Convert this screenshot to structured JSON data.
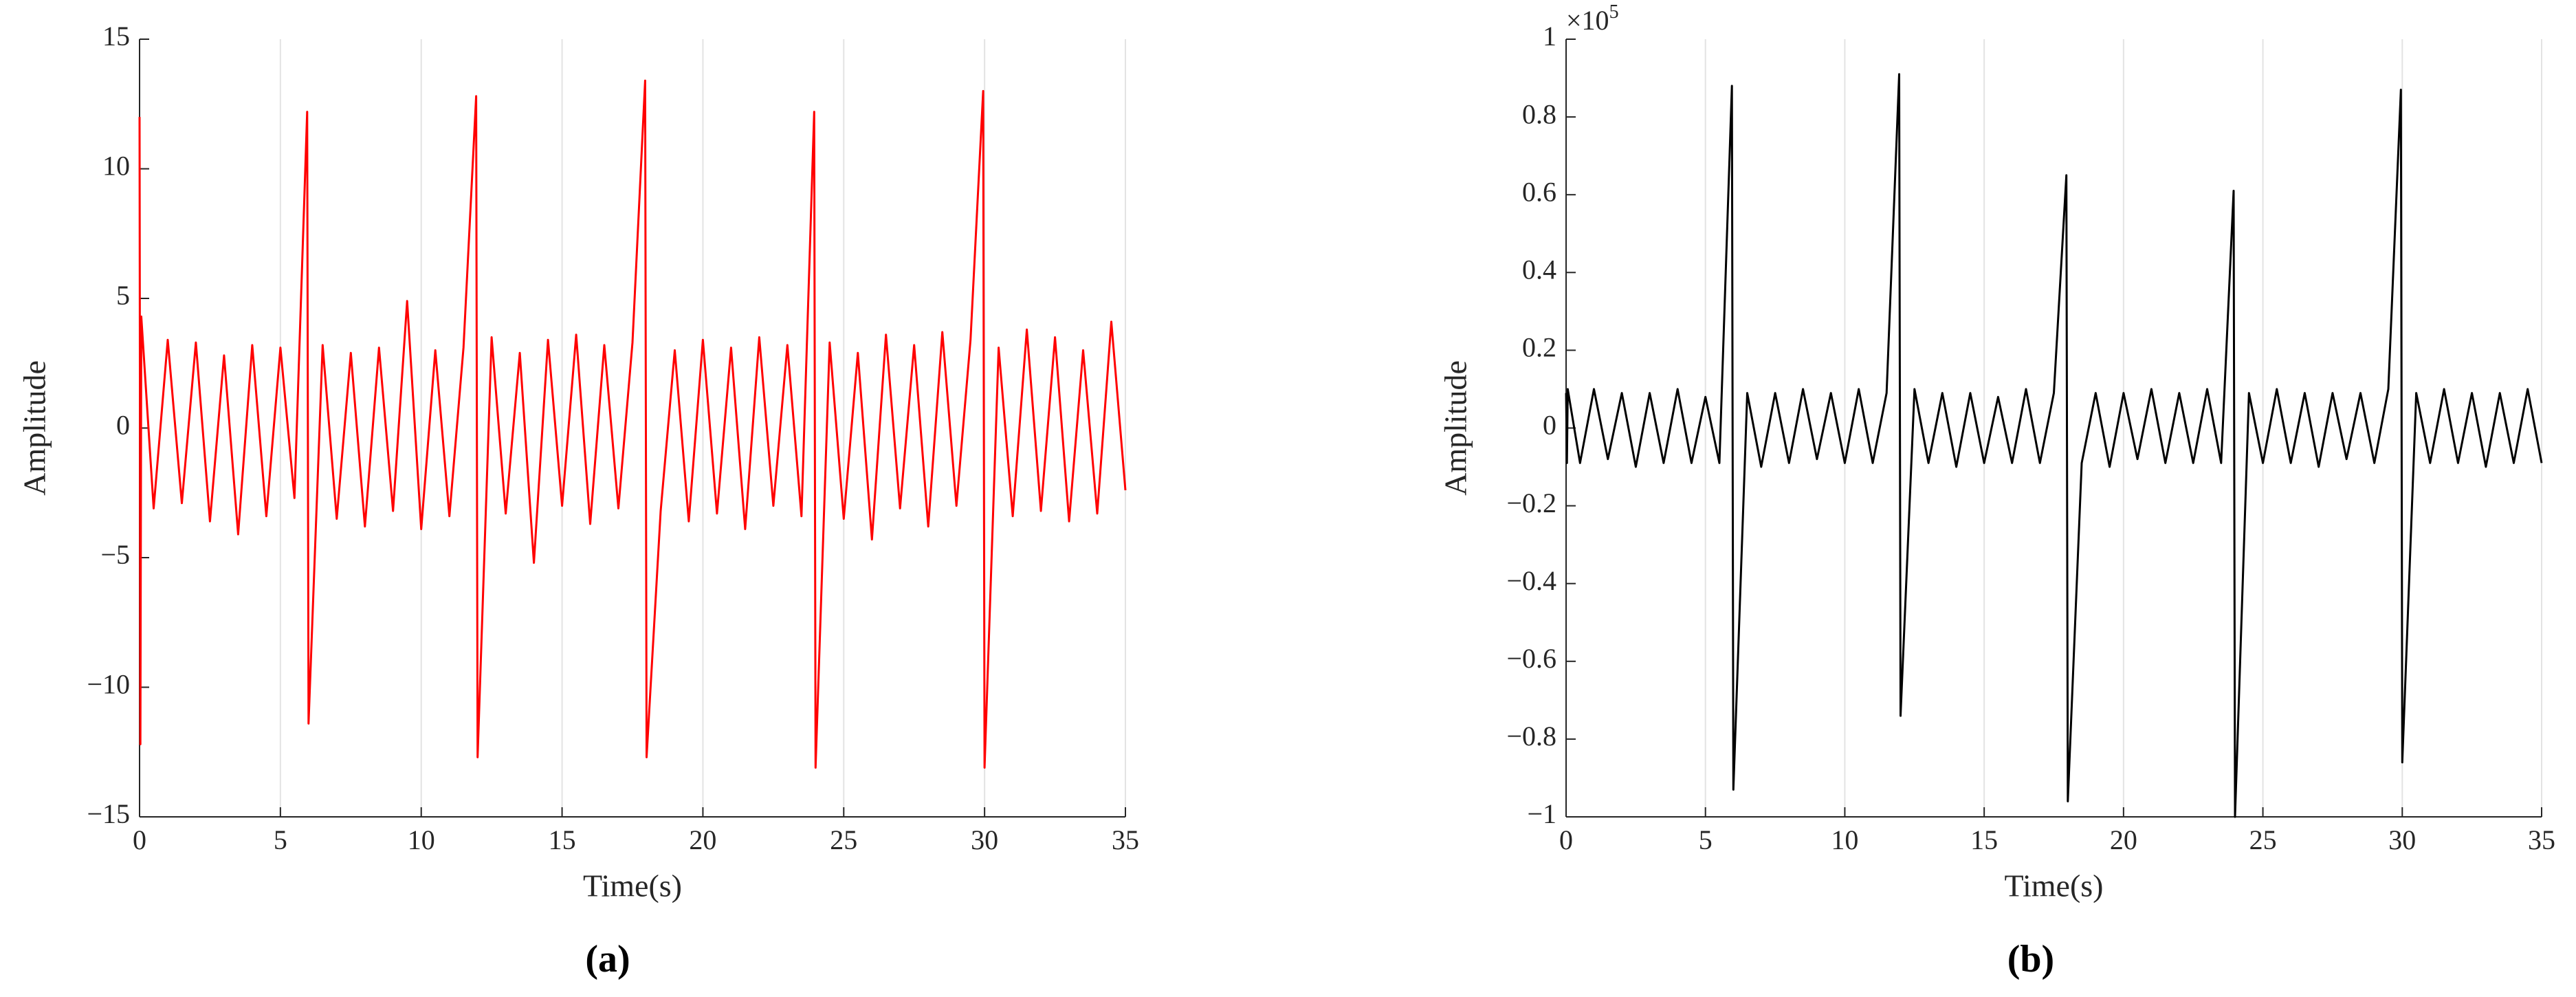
{
  "chart_data": [
    {
      "type": "line",
      "panel_label": "(a)",
      "xlabel": "Time(s)",
      "ylabel": "Amplitude",
      "xlim": [
        0,
        35
      ],
      "xticks": [
        0,
        5,
        10,
        15,
        20,
        25,
        30,
        35
      ],
      "ylim": [
        -15,
        15
      ],
      "yticks": [
        {
          "value": -15,
          "label": "−15"
        },
        {
          "value": -10,
          "label": "−10"
        },
        {
          "value": -5,
          "label": "−5"
        },
        0,
        5,
        10,
        15
      ],
      "grid": "x",
      "x": [
        0,
        0.03,
        0.06,
        0.5,
        1,
        1.5,
        2,
        2.5,
        3,
        3.5,
        4,
        4.5,
        5,
        5.5,
        5.95,
        6.0,
        6.5,
        7,
        7.5,
        8,
        8.5,
        9,
        9.5,
        10,
        10.5,
        11,
        11.5,
        11.95,
        12.0,
        12.5,
        13,
        13.5,
        14,
        14.5,
        15,
        15.5,
        16,
        16.5,
        17,
        17.5,
        17.95,
        18.0,
        18.5,
        19,
        19.5,
        20,
        20.5,
        21,
        21.5,
        22,
        22.5,
        23,
        23.5,
        23.95,
        24.0,
        24.5,
        25,
        25.5,
        26,
        26.5,
        27,
        27.5,
        28,
        28.5,
        29,
        29.5,
        29.95,
        30.0,
        30.5,
        31,
        31.5,
        32,
        32.5,
        33,
        33.5,
        34,
        34.5,
        35
      ],
      "series": [
        {
          "color": "#ff0000",
          "values": [
            12,
            -12.2,
            4.3,
            -3.1,
            3.4,
            -2.9,
            3.3,
            -3.6,
            2.8,
            -4.1,
            3.2,
            -3.4,
            3.1,
            -2.7,
            12.2,
            -11.4,
            3.2,
            -3.5,
            2.9,
            -3.8,
            3.1,
            -3.2,
            4.9,
            -3.9,
            3.0,
            -3.4,
            3.1,
            12.8,
            -12.7,
            3.5,
            -3.3,
            2.9,
            -5.2,
            3.4,
            -3.0,
            3.6,
            -3.7,
            3.2,
            -3.1,
            3.3,
            13.4,
            -12.7,
            -3.2,
            3.0,
            -3.6,
            3.4,
            -3.3,
            3.1,
            -3.9,
            3.5,
            -3.0,
            3.2,
            -3.4,
            12.2,
            -13.1,
            3.3,
            -3.5,
            2.9,
            -4.3,
            3.6,
            -3.1,
            3.2,
            -3.8,
            3.7,
            -3.0,
            3.4,
            13.0,
            -13.1,
            3.1,
            -3.4,
            3.8,
            -3.2,
            3.5,
            -3.6,
            3.0,
            -3.3,
            4.1,
            -2.4
          ]
        }
      ]
    },
    {
      "type": "line",
      "panel_label": "(b)",
      "xlabel": "Time(s)",
      "ylabel": "Amplitude",
      "y_multiplier": "×10",
      "y_multiplier_exponent": "5",
      "xlim": [
        0,
        35
      ],
      "xticks": [
        0,
        5,
        10,
        15,
        20,
        25,
        30,
        35
      ],
      "ylim": [
        -1,
        1
      ],
      "yticks": [
        {
          "value": -1,
          "label": "−1"
        },
        {
          "value": -0.8,
          "label": "−0.8"
        },
        {
          "value": -0.6,
          "label": "−0.6"
        },
        {
          "value": -0.4,
          "label": "−0.4"
        },
        {
          "value": -0.2,
          "label": "−0.2"
        },
        0,
        0.2,
        0.4,
        0.6,
        0.8,
        1
      ],
      "grid": "x",
      "x": [
        0,
        0.03,
        0.06,
        0.5,
        1,
        1.5,
        2,
        2.5,
        3,
        3.5,
        4,
        4.5,
        5,
        5.5,
        5.95,
        6.0,
        6.5,
        7,
        7.5,
        8,
        8.5,
        9,
        9.5,
        10,
        10.5,
        11,
        11.5,
        11.95,
        12.0,
        12.5,
        13,
        13.5,
        14,
        14.5,
        15,
        15.5,
        16,
        16.5,
        17,
        17.5,
        17.95,
        18.0,
        18.5,
        19,
        19.5,
        20,
        20.5,
        21,
        21.5,
        22,
        22.5,
        23,
        23.5,
        23.95,
        24.0,
        24.5,
        25,
        25.5,
        26,
        26.5,
        27,
        27.5,
        28,
        28.5,
        29,
        29.5,
        29.95,
        30.0,
        30.5,
        31,
        31.5,
        32,
        32.5,
        33,
        33.5,
        34,
        34.5,
        35
      ],
      "series": [
        {
          "color": "#000000",
          "values": [
            0.09,
            -0.09,
            0.1,
            -0.09,
            0.1,
            -0.08,
            0.09,
            -0.1,
            0.09,
            -0.09,
            0.1,
            -0.09,
            0.08,
            -0.09,
            0.88,
            -0.93,
            0.09,
            -0.1,
            0.09,
            -0.09,
            0.1,
            -0.08,
            0.09,
            -0.09,
            0.1,
            -0.09,
            0.09,
            0.91,
            -0.74,
            0.1,
            -0.09,
            0.09,
            -0.1,
            0.09,
            -0.09,
            0.08,
            -0.09,
            0.1,
            -0.09,
            0.09,
            0.65,
            -0.96,
            -0.09,
            0.09,
            -0.1,
            0.09,
            -0.08,
            0.1,
            -0.09,
            0.09,
            -0.09,
            0.1,
            -0.09,
            0.61,
            -1,
            0.09,
            -0.09,
            0.1,
            -0.09,
            0.09,
            -0.1,
            0.09,
            -0.08,
            0.09,
            -0.09,
            0.1,
            0.87,
            -0.86,
            0.09,
            -0.09,
            0.1,
            -0.09,
            0.09,
            -0.1,
            0.09,
            -0.09,
            0.1,
            -0.09
          ]
        }
      ]
    }
  ]
}
